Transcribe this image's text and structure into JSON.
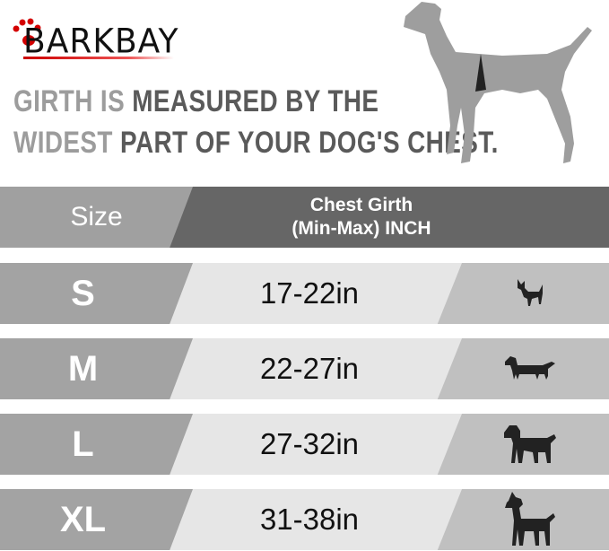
{
  "brand": {
    "logo_text": "BARKBAY",
    "accent_color": "#d40000"
  },
  "headline": {
    "line1": {
      "light": "GIRTH IS",
      "dark": "MEASURED BY THE"
    },
    "line2": {
      "light": "WIDEST",
      "dark": "PART OF YOUR DOG'S CHEST."
    }
  },
  "table": {
    "header": {
      "size": "Size",
      "girth_line1": "Chest Girth",
      "girth_line2": "(Min-Max)  INCH"
    },
    "rows": [
      {
        "size": "S",
        "girth": "17-22in",
        "icon": "chihuahua-icon"
      },
      {
        "size": "M",
        "girth": "22-27in",
        "icon": "dachshund-icon"
      },
      {
        "size": "L",
        "girth": "27-32in",
        "icon": "labrador-icon"
      },
      {
        "size": "XL",
        "girth": "31-38in",
        "icon": "great-dane-icon"
      }
    ]
  }
}
